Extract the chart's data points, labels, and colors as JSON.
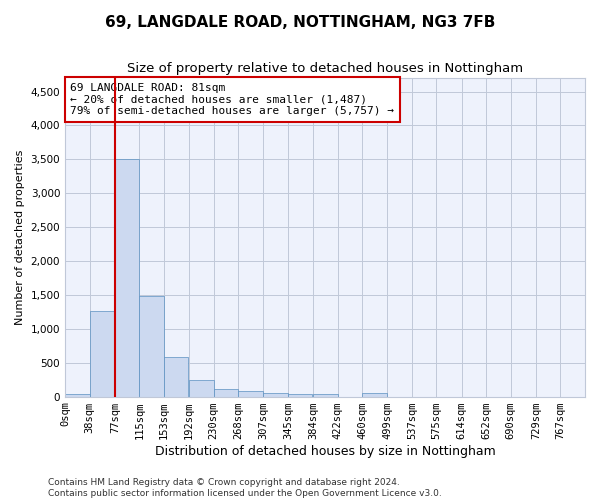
{
  "title1": "69, LANGDALE ROAD, NOTTINGHAM, NG3 7FB",
  "title2": "Size of property relative to detached houses in Nottingham",
  "xlabel": "Distribution of detached houses by size in Nottingham",
  "ylabel": "Number of detached properties",
  "footnote1": "Contains HM Land Registry data © Crown copyright and database right 2024.",
  "footnote2": "Contains public sector information licensed under the Open Government Licence v3.0.",
  "annotation_line1": "69 LANGDALE ROAD: 81sqm",
  "annotation_line2": "← 20% of detached houses are smaller (1,487)",
  "annotation_line3": "79% of semi-detached houses are larger (5,757) →",
  "bar_color": "#ccd9f0",
  "bar_edge_color": "#5a8fc0",
  "marker_color": "#cc0000",
  "categories": [
    "0sqm",
    "38sqm",
    "77sqm",
    "115sqm",
    "153sqm",
    "192sqm",
    "230sqm",
    "268sqm",
    "307sqm",
    "345sqm",
    "384sqm",
    "422sqm",
    "460sqm",
    "499sqm",
    "537sqm",
    "575sqm",
    "614sqm",
    "652sqm",
    "690sqm",
    "729sqm",
    "767sqm"
  ],
  "bin_edges": [
    0,
    38,
    77,
    115,
    153,
    192,
    230,
    268,
    307,
    345,
    384,
    422,
    460,
    499,
    537,
    575,
    614,
    652,
    690,
    729,
    767
  ],
  "bin_width": 38,
  "values": [
    35,
    1270,
    3500,
    1480,
    580,
    240,
    115,
    80,
    55,
    40,
    35,
    0,
    55,
    0,
    0,
    0,
    0,
    0,
    0,
    0,
    0
  ],
  "marker_bin": 2,
  "ylim": [
    0,
    4700
  ],
  "yticks": [
    0,
    500,
    1000,
    1500,
    2000,
    2500,
    3000,
    3500,
    4000,
    4500
  ],
  "bg_color": "#eef2fc",
  "grid_color": "#c0c8d8",
  "title1_fontsize": 11,
  "title2_fontsize": 9.5,
  "annot_fontsize": 8,
  "xlabel_fontsize": 9,
  "ylabel_fontsize": 8,
  "tick_fontsize": 7.5,
  "footnote_fontsize": 6.5
}
